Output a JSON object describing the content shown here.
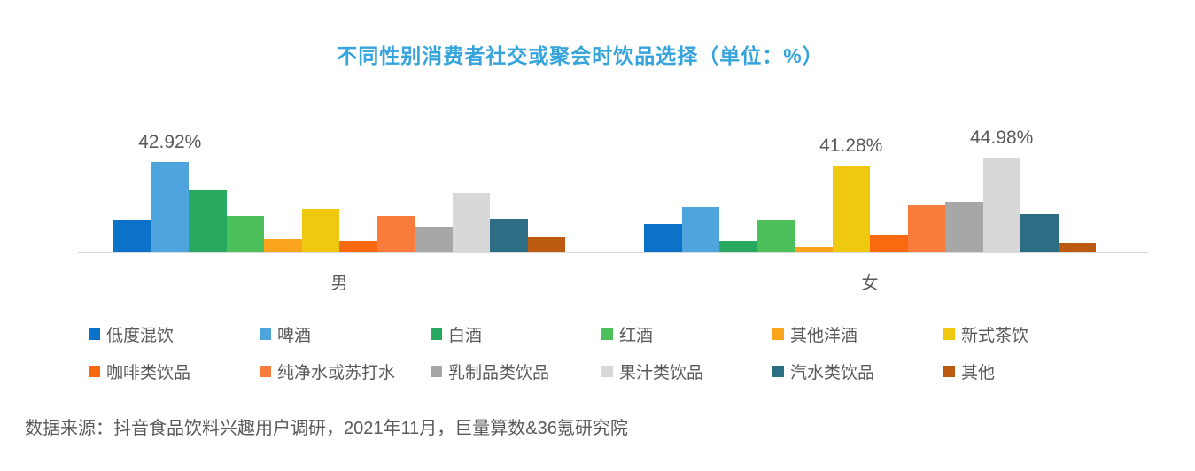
{
  "title": "不同性别消费者社交或聚会时饮品选择（单位：%）",
  "title_color": "#35a3dc",
  "source_note": "数据来源：抖音食品饮料兴趣用户调研，2021年11月，巨量算数&36氪研究院",
  "text_color": "#595959",
  "axis_line_color": "#d9d9d9",
  "chart_data": {
    "type": "bar",
    "title": "不同性别消费者社交或聚会时饮品选择（单位：%）",
    "unit": "%",
    "grid": false,
    "legend_position": "bottom",
    "ylim": [
      0,
      50
    ],
    "categories": [
      "低度混饮",
      "啤酒",
      "白酒",
      "红酒",
      "其他洋酒",
      "新式茶饮",
      "咖啡类饮品",
      "纯净水或苏打水",
      "乳制品类饮品",
      "果汁类饮品",
      "汽水类饮品",
      "其他"
    ],
    "colors": [
      "#0a72c9",
      "#4ea5de",
      "#27a95f",
      "#4cc05b",
      "#f9a41c",
      "#eec90f",
      "#f96a10",
      "#f97c3d",
      "#a7a7a7",
      "#d8d8d8",
      "#2e6e84",
      "#bd5a12"
    ],
    "groups": [
      {
        "label": "男",
        "values": [
          15.2,
          42.92,
          29.5,
          17.3,
          6.2,
          20.7,
          5.6,
          17.3,
          12.2,
          28.1,
          16.2,
          7.3
        ]
      },
      {
        "label": "女",
        "values": [
          13.5,
          21.5,
          5.4,
          15.2,
          2.7,
          41.28,
          8.2,
          22.7,
          24.2,
          44.98,
          18.3,
          4.2
        ]
      }
    ],
    "point_labels": [
      {
        "group": 0,
        "index": 1,
        "text": "42.92%"
      },
      {
        "group": 1,
        "index": 5,
        "text": "41.28%"
      },
      {
        "group": 1,
        "index": 9,
        "text": "44.98%"
      }
    ]
  }
}
